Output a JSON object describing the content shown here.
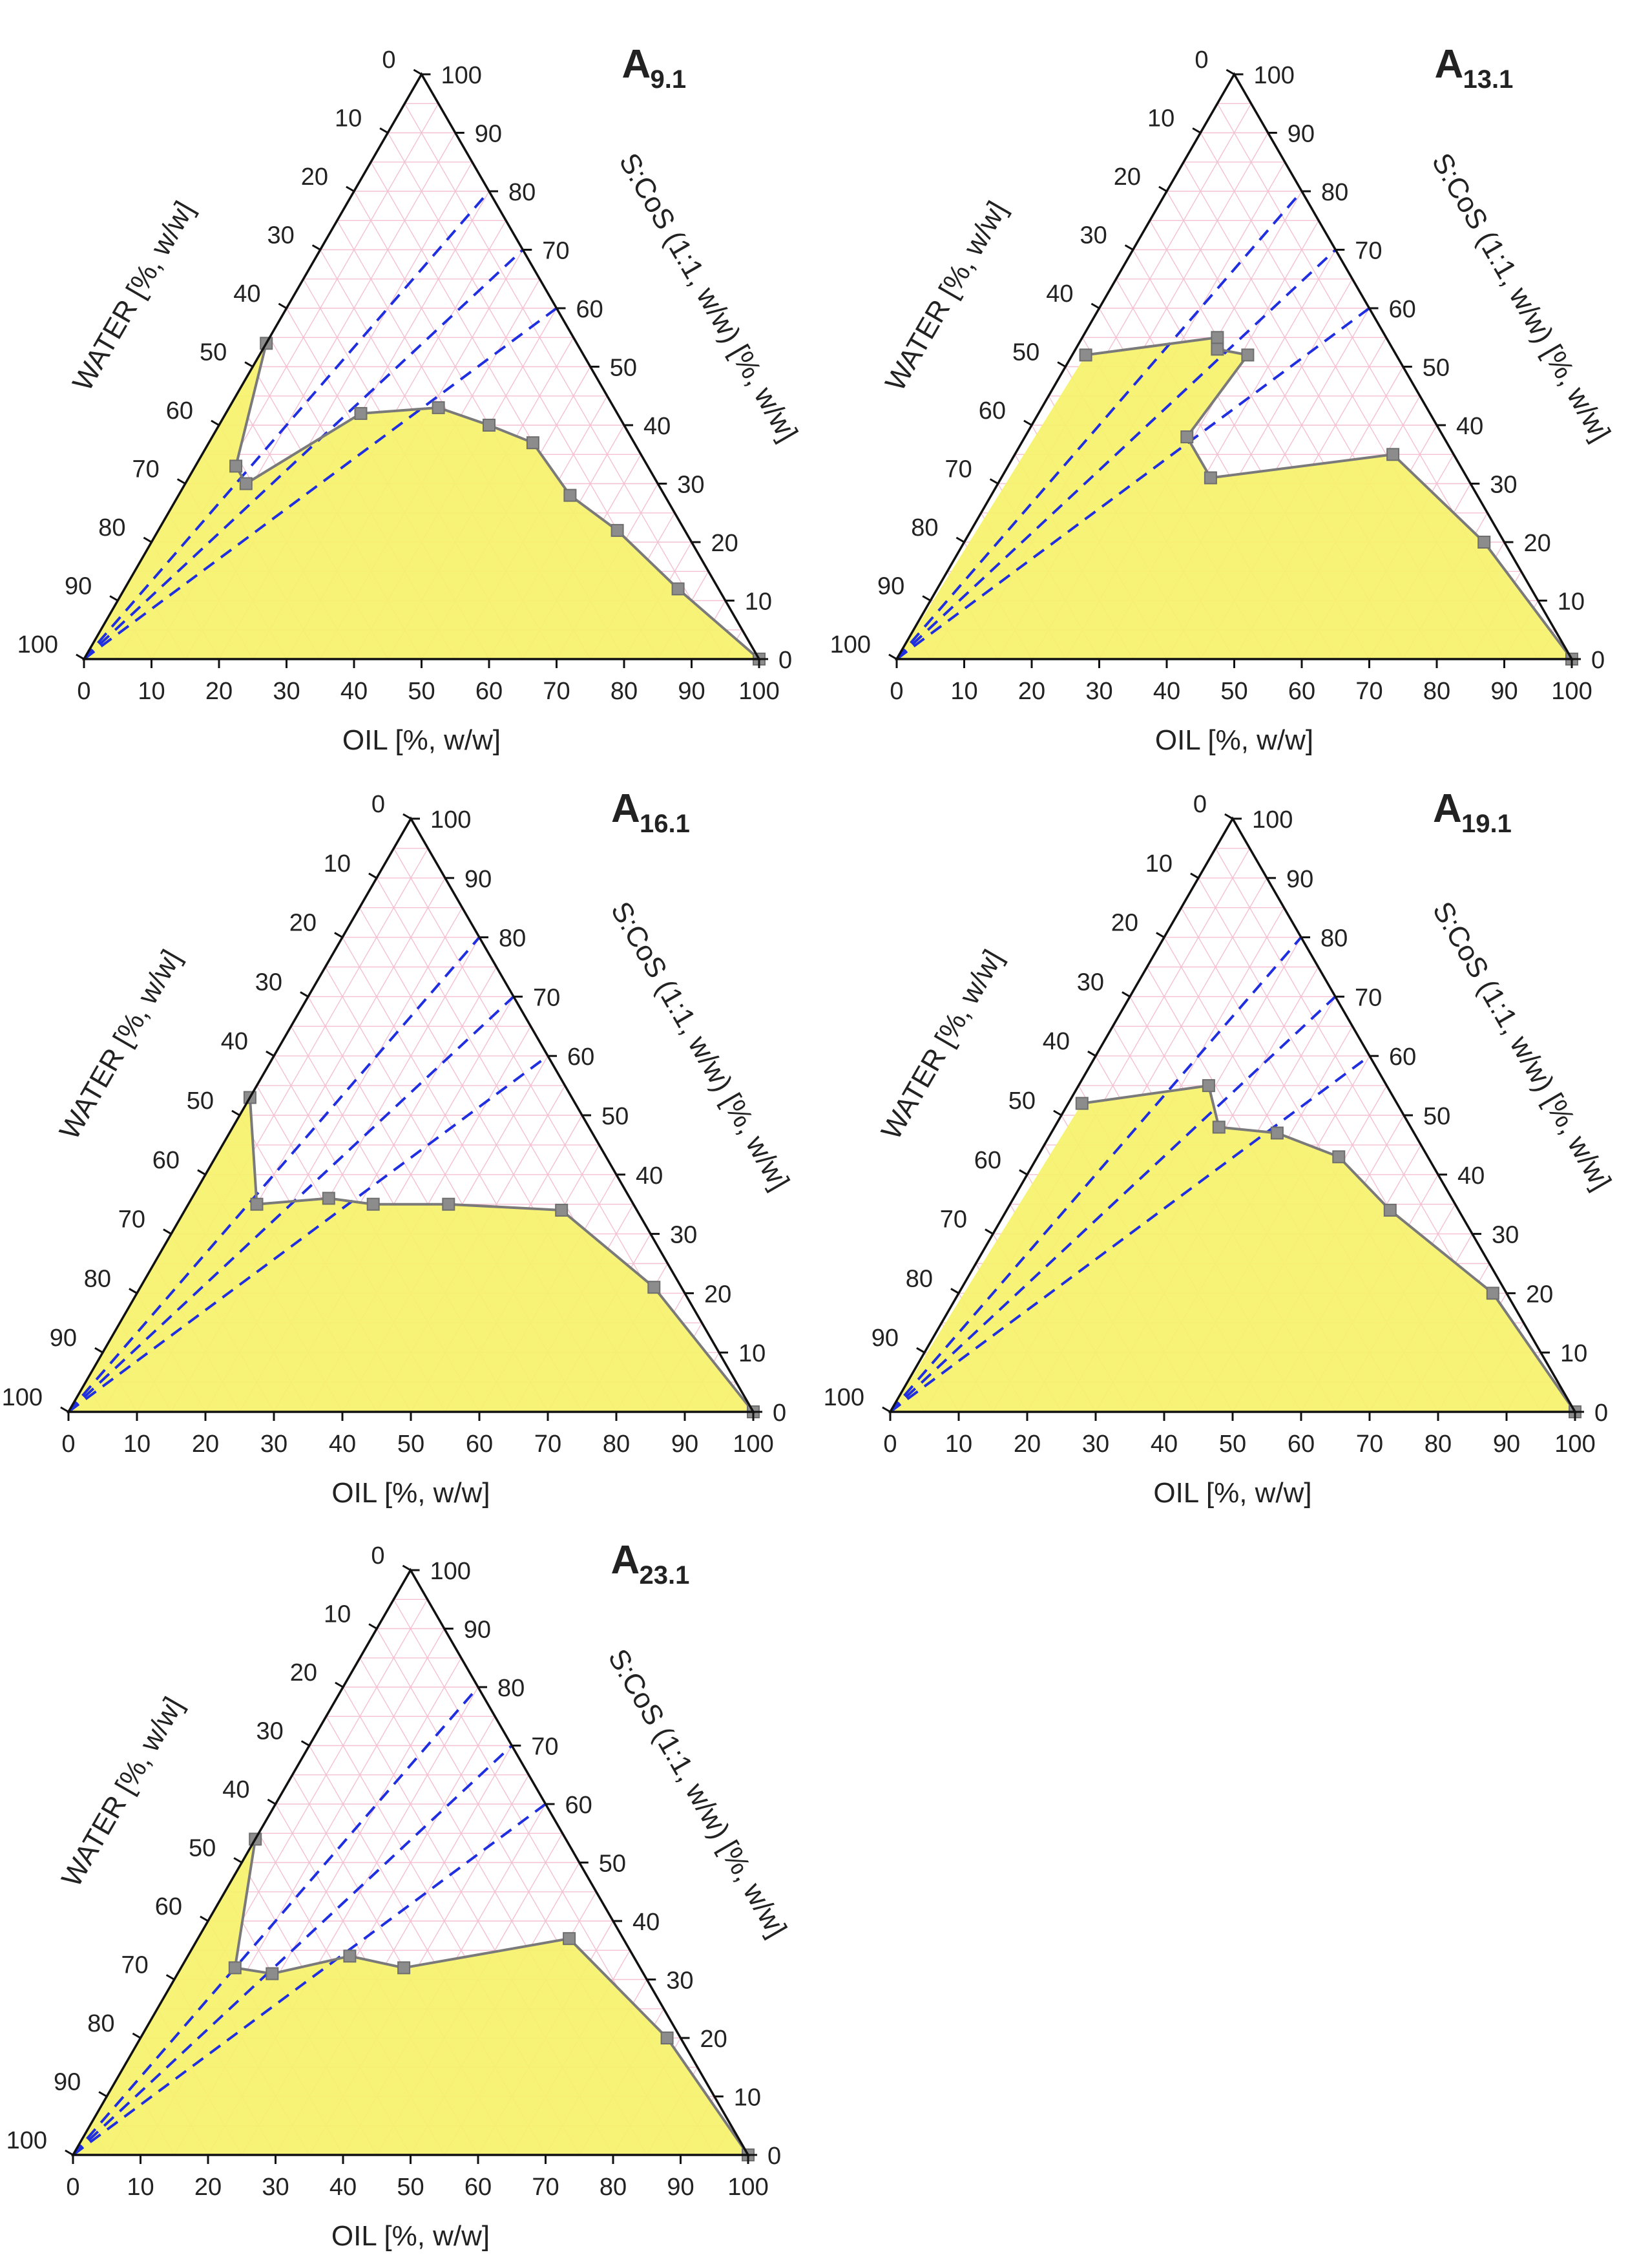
{
  "figure": {
    "description_panels": 5
  },
  "chart_data": [
    {
      "type": "ternary",
      "title": "A",
      "subscript": "9.1",
      "axes": {
        "left": {
          "label": "WATER [%, w/w]",
          "ticks": [
            "0",
            "10",
            "20",
            "30",
            "40",
            "50",
            "60",
            "70",
            "80",
            "90",
            "100"
          ]
        },
        "right": {
          "label": "S:CoS (1:1, w/w) [%, w/w]",
          "ticks": [
            "100",
            "90",
            "80",
            "70",
            "60",
            "50",
            "40",
            "30",
            "20",
            "10",
            "0"
          ]
        },
        "bottom": {
          "label": "OIL [%, w/w]",
          "ticks": [
            "0",
            "10",
            "20",
            "30",
            "40",
            "50",
            "60",
            "70",
            "80",
            "90",
            "100"
          ]
        }
      },
      "region_color": "#f6f26b",
      "boundary_points": [
        {
          "oil": 0,
          "scos": 0,
          "water": 100
        },
        {
          "oil": 0,
          "scos": 54,
          "water": 46
        },
        {
          "oil": 6,
          "scos": 33,
          "water": 61
        },
        {
          "oil": 9,
          "scos": 30,
          "water": 61
        },
        {
          "oil": 20,
          "scos": 42,
          "water": 38
        },
        {
          "oil": 31,
          "scos": 43,
          "water": 26
        },
        {
          "oil": 40,
          "scos": 40,
          "water": 20
        },
        {
          "oil": 48,
          "scos": 37,
          "water": 15
        },
        {
          "oil": 58,
          "scos": 28,
          "water": 14
        },
        {
          "oil": 68,
          "scos": 22,
          "water": 10
        },
        {
          "oil": 82,
          "scos": 12,
          "water": 6
        },
        {
          "oil": 100,
          "scos": 0,
          "water": 0
        }
      ],
      "dilution_lines": [
        {
          "oil": 20,
          "scos": 80,
          "water": 0
        },
        {
          "oil": 30,
          "scos": 70,
          "water": 0
        },
        {
          "oil": 40,
          "scos": 60,
          "water": 0
        }
      ]
    },
    {
      "type": "ternary",
      "title": "A",
      "subscript": "13.1",
      "axes": {
        "left": {
          "label": "WATER [%, w/w]",
          "ticks": [
            "0",
            "10",
            "20",
            "30",
            "40",
            "50",
            "60",
            "70",
            "80",
            "90",
            "100"
          ]
        },
        "right": {
          "label": "S:CoS (1:1, w/w) [%, w/w]",
          "ticks": [
            "100",
            "90",
            "80",
            "70",
            "60",
            "50",
            "40",
            "30",
            "20",
            "10",
            "0"
          ]
        },
        "bottom": {
          "label": "OIL [%, w/w]",
          "ticks": [
            "0",
            "10",
            "20",
            "30",
            "40",
            "50",
            "60",
            "70",
            "80",
            "90",
            "100"
          ]
        }
      },
      "region_color": "#f6f26b",
      "boundary_points": [
        {
          "oil": 0,
          "scos": 0,
          "water": 100
        },
        {
          "oil": 2,
          "scos": 52,
          "water": 46
        },
        {
          "oil": 20,
          "scos": 55,
          "water": 25
        },
        {
          "oil": 21,
          "scos": 53,
          "water": 26
        },
        {
          "oil": 26,
          "scos": 52,
          "water": 22
        },
        {
          "oil": 24,
          "scos": 38,
          "water": 38
        },
        {
          "oil": 31,
          "scos": 31,
          "water": 38
        },
        {
          "oil": 56,
          "scos": 35,
          "water": 9
        },
        {
          "oil": 77,
          "scos": 20,
          "water": 3
        },
        {
          "oil": 100,
          "scos": 0,
          "water": 0
        }
      ],
      "dilution_lines": [
        {
          "oil": 20,
          "scos": 80,
          "water": 0
        },
        {
          "oil": 30,
          "scos": 70,
          "water": 0
        },
        {
          "oil": 40,
          "scos": 60,
          "water": 0
        }
      ]
    },
    {
      "type": "ternary",
      "title": "A",
      "subscript": "16.1",
      "axes": {
        "left": {
          "label": "WATER [%, w/w]",
          "ticks": [
            "0",
            "10",
            "20",
            "30",
            "40",
            "50",
            "60",
            "70",
            "80",
            "90",
            "100"
          ]
        },
        "right": {
          "label": "S:CoS (1:1, w/w) [%, w/w]",
          "ticks": [
            "100",
            "90",
            "80",
            "70",
            "60",
            "50",
            "40",
            "30",
            "20",
            "10",
            "0"
          ]
        },
        "bottom": {
          "label": "OIL [%, w/w]",
          "ticks": [
            "0",
            "10",
            "20",
            "30",
            "40",
            "50",
            "60",
            "70",
            "80",
            "90",
            "100"
          ]
        }
      },
      "region_color": "#f6f26b",
      "boundary_points": [
        {
          "oil": 0,
          "scos": 0,
          "water": 100
        },
        {
          "oil": 0,
          "scos": 53,
          "water": 47
        },
        {
          "oil": 10,
          "scos": 35,
          "water": 55
        },
        {
          "oil": 20,
          "scos": 36,
          "water": 44
        },
        {
          "oil": 27,
          "scos": 35,
          "water": 38
        },
        {
          "oil": 38,
          "scos": 35,
          "water": 27
        },
        {
          "oil": 55,
          "scos": 34,
          "water": 11
        },
        {
          "oil": 75,
          "scos": 21,
          "water": 4
        },
        {
          "oil": 100,
          "scos": 0,
          "water": 0
        }
      ],
      "dilution_lines": [
        {
          "oil": 20,
          "scos": 80,
          "water": 0
        },
        {
          "oil": 30,
          "scos": 70,
          "water": 0
        },
        {
          "oil": 40,
          "scos": 60,
          "water": 0
        }
      ]
    },
    {
      "type": "ternary",
      "title": "A",
      "subscript": "19.1",
      "axes": {
        "left": {
          "label": "WATER [%, w/w]",
          "ticks": [
            "0",
            "10",
            "20",
            "30",
            "40",
            "50",
            "60",
            "70",
            "80",
            "90",
            "100"
          ]
        },
        "right": {
          "label": "S:CoS (1:1, w/w) [%, w/w]",
          "ticks": [
            "100",
            "90",
            "80",
            "70",
            "60",
            "50",
            "40",
            "30",
            "20",
            "10",
            "0"
          ]
        },
        "bottom": {
          "label": "OIL [%, w/w]",
          "ticks": [
            "0",
            "10",
            "20",
            "30",
            "40",
            "50",
            "60",
            "70",
            "80",
            "90",
            "100"
          ]
        }
      },
      "region_color": "#f6f26b",
      "boundary_points": [
        {
          "oil": 0,
          "scos": 0,
          "water": 100
        },
        {
          "oil": 2,
          "scos": 52,
          "water": 46
        },
        {
          "oil": 19,
          "scos": 55,
          "water": 26
        },
        {
          "oil": 24,
          "scos": 48,
          "water": 28
        },
        {
          "oil": 33,
          "scos": 47,
          "water": 20
        },
        {
          "oil": 44,
          "scos": 43,
          "water": 13
        },
        {
          "oil": 56,
          "scos": 34,
          "water": 10
        },
        {
          "oil": 78,
          "scos": 20,
          "water": 2
        },
        {
          "oil": 100,
          "scos": 0,
          "water": 0
        }
      ],
      "dilution_lines": [
        {
          "oil": 20,
          "scos": 80,
          "water": 0
        },
        {
          "oil": 30,
          "scos": 70,
          "water": 0
        },
        {
          "oil": 40,
          "scos": 60,
          "water": 0
        }
      ]
    },
    {
      "type": "ternary",
      "title": "A",
      "subscript": "23.1",
      "axes": {
        "left": {
          "label": "WATER [%, w/w]",
          "ticks": [
            "0",
            "10",
            "20",
            "30",
            "40",
            "50",
            "60",
            "70",
            "80",
            "90",
            "100"
          ]
        },
        "right": {
          "label": "S:CoS (1:1, w/w) [%, w/w]",
          "ticks": [
            "100",
            "90",
            "80",
            "70",
            "60",
            "50",
            "40",
            "30",
            "20",
            "10",
            "0"
          ]
        },
        "bottom": {
          "label": "OIL [%, w/w]",
          "ticks": [
            "0",
            "10",
            "20",
            "30",
            "40",
            "50",
            "60",
            "70",
            "80",
            "90",
            "100"
          ]
        }
      },
      "region_color": "#f6f26b",
      "boundary_points": [
        {
          "oil": 0,
          "scos": 0,
          "water": 100
        },
        {
          "oil": 0,
          "scos": 54,
          "water": 46
        },
        {
          "oil": 8,
          "scos": 32,
          "water": 60
        },
        {
          "oil": 14,
          "scos": 31,
          "water": 55
        },
        {
          "oil": 24,
          "scos": 34,
          "water": 42
        },
        {
          "oil": 33,
          "scos": 32,
          "water": 35
        },
        {
          "oil": 55,
          "scos": 37,
          "water": 8
        },
        {
          "oil": 78,
          "scos": 20,
          "water": 2
        },
        {
          "oil": 100,
          "scos": 0,
          "water": 0
        }
      ],
      "dilution_lines": [
        {
          "oil": 20,
          "scos": 80,
          "water": 0
        },
        {
          "oil": 30,
          "scos": 70,
          "water": 0
        },
        {
          "oil": 40,
          "scos": 60,
          "water": 0
        }
      ]
    }
  ]
}
